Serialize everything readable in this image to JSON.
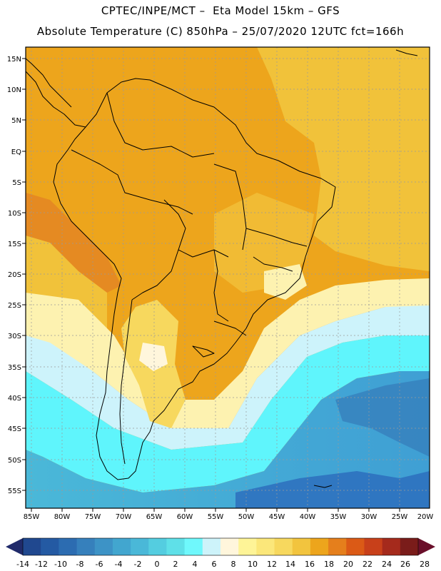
{
  "header": {
    "line1": "CPTEC/INPE/MCT –  Eta Model 15km – GFS",
    "line2": "Absolute Temperature (C) 850hPa – 25/07/2020 12UTC fct=166h"
  },
  "map": {
    "lat_labels": [
      "15N",
      "10N",
      "5N",
      "EQ",
      "5S",
      "10S",
      "15S",
      "20S",
      "25S",
      "30S",
      "35S",
      "40S",
      "45S",
      "50S",
      "55S"
    ],
    "lon_labels": [
      "85W",
      "80W",
      "75W",
      "70W",
      "65W",
      "60W",
      "55W",
      "50W",
      "45W",
      "40W",
      "35W",
      "30W",
      "25W",
      "20W"
    ],
    "colors": {
      "warm_orange": "#eda51c",
      "gold": "#f1c23a",
      "pale_yellow": "#fdf2b0",
      "cream": "#fff9e3",
      "light_cyan": "#cdf3fb",
      "cyan": "#5ff5fc",
      "teal": "#45d8e0",
      "blue": "#3fa9d8",
      "deep_blue": "#2d6fbd"
    }
  },
  "colorbar": {
    "labels": [
      "-14",
      "-12",
      "-10",
      "-8",
      "-6",
      "-4",
      "-2",
      "0",
      "2",
      "4",
      "6",
      "8",
      "10",
      "12",
      "14",
      "16",
      "18",
      "20",
      "22",
      "24",
      "26",
      "28"
    ],
    "colors": [
      "#20488f",
      "#245aa3",
      "#2c6cb1",
      "#3680bc",
      "#3d93c6",
      "#42a6cf",
      "#4ab8d8",
      "#54cde0",
      "#5fe0e8",
      "#6ff8fc",
      "#cdf3fa",
      "#fff6dc",
      "#fef497",
      "#fbe77a",
      "#f7d85e",
      "#f2c43e",
      "#eda51c",
      "#e57f1c",
      "#db5a16",
      "#c8401a",
      "#a52a1c",
      "#7a1c1a"
    ],
    "left_arrow_color": "#202a6a",
    "right_arrow_color": "#6a0f2a"
  }
}
